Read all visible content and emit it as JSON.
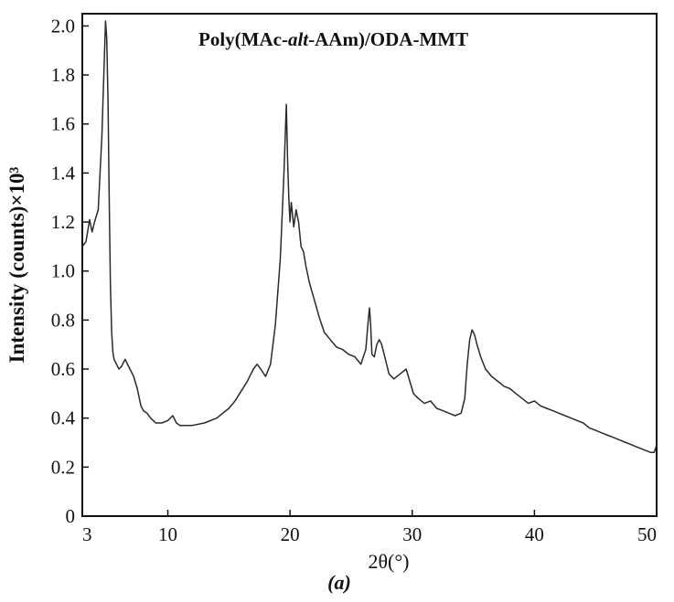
{
  "chart_data": {
    "type": "line",
    "title_parts": [
      "Poly(MAc-",
      "alt",
      "-AAm)/ODA-MMT"
    ],
    "ylabel": "Intensity (counts)×10³",
    "xlabel": "2θ(°)",
    "panel_label": "(a)",
    "xlim": [
      3,
      50
    ],
    "ylim": [
      0,
      2.05
    ],
    "x_ticks": [
      3,
      10,
      20,
      30,
      40,
      50
    ],
    "x_tick_labels": [
      "3",
      "10",
      "20",
      "30",
      "40",
      "50"
    ],
    "y_ticks": [
      0,
      0.2,
      0.4,
      0.6,
      0.8,
      1.0,
      1.2,
      1.4,
      1.6,
      1.8,
      2.0
    ],
    "y_tick_labels": [
      "0",
      "0.2",
      "0.4",
      "0.6",
      "0.8",
      "1.0",
      "1.2",
      "1.4",
      "1.6",
      "1.8",
      "2.0"
    ],
    "line_color": "#2a2a2a",
    "grid": false,
    "series": [
      {
        "x": [
          3.0,
          3.3,
          3.6,
          3.8,
          4.0,
          4.3,
          4.6,
          4.9,
          5.0,
          5.1,
          5.2,
          5.3,
          5.4,
          5.5,
          5.6,
          5.7,
          5.8,
          6.0,
          6.2,
          6.5,
          6.9,
          7.2,
          7.5,
          7.8,
          8.0,
          8.3,
          8.6,
          9.0,
          9.5,
          10.0,
          10.4,
          10.7,
          11.0,
          11.5,
          12.0,
          13.0,
          14.0,
          15.0,
          15.5,
          16.0,
          16.5,
          17.0,
          17.3,
          17.6,
          18.0,
          18.4,
          18.8,
          19.2,
          19.5,
          19.7,
          19.8,
          19.9,
          20.0,
          20.1,
          20.3,
          20.5,
          20.7,
          20.9,
          21.1,
          21.3,
          21.6,
          22.0,
          22.4,
          22.8,
          23.3,
          23.8,
          24.3,
          24.8,
          25.3,
          25.8,
          26.2,
          26.4,
          26.5,
          26.6,
          26.7,
          26.9,
          27.1,
          27.3,
          27.5,
          27.8,
          28.1,
          28.5,
          29.0,
          29.5,
          29.8,
          30.1,
          30.5,
          31.0,
          31.5,
          32.0,
          32.5,
          33.0,
          33.5,
          34.0,
          34.3,
          34.5,
          34.7,
          34.9,
          35.1,
          35.3,
          35.6,
          36.0,
          36.5,
          37.0,
          37.5,
          38.0,
          38.5,
          39.0,
          39.5,
          40.0,
          40.5,
          41.0,
          41.5,
          42.0,
          42.5,
          43.0,
          43.5,
          44.0,
          44.5,
          45.0,
          45.5,
          46.0,
          46.5,
          47.0,
          47.5,
          48.0,
          48.5,
          49.0,
          49.5,
          49.8,
          50.0
        ],
        "y": [
          1.1,
          1.12,
          1.21,
          1.16,
          1.2,
          1.25,
          1.55,
          2.02,
          1.95,
          1.7,
          1.3,
          0.95,
          0.75,
          0.67,
          0.64,
          0.63,
          0.62,
          0.6,
          0.61,
          0.64,
          0.6,
          0.57,
          0.52,
          0.45,
          0.43,
          0.42,
          0.4,
          0.38,
          0.38,
          0.39,
          0.41,
          0.38,
          0.37,
          0.37,
          0.37,
          0.38,
          0.4,
          0.44,
          0.47,
          0.51,
          0.55,
          0.6,
          0.62,
          0.6,
          0.57,
          0.62,
          0.78,
          1.05,
          1.4,
          1.68,
          1.45,
          1.3,
          1.2,
          1.28,
          1.18,
          1.25,
          1.2,
          1.1,
          1.08,
          1.02,
          0.95,
          0.88,
          0.81,
          0.75,
          0.72,
          0.69,
          0.68,
          0.66,
          0.65,
          0.62,
          0.68,
          0.8,
          0.85,
          0.78,
          0.66,
          0.65,
          0.7,
          0.72,
          0.7,
          0.64,
          0.58,
          0.56,
          0.58,
          0.6,
          0.55,
          0.5,
          0.48,
          0.46,
          0.47,
          0.44,
          0.43,
          0.42,
          0.41,
          0.42,
          0.48,
          0.62,
          0.72,
          0.76,
          0.74,
          0.7,
          0.65,
          0.6,
          0.57,
          0.55,
          0.53,
          0.52,
          0.5,
          0.48,
          0.46,
          0.47,
          0.45,
          0.44,
          0.43,
          0.42,
          0.41,
          0.4,
          0.39,
          0.38,
          0.36,
          0.35,
          0.34,
          0.33,
          0.32,
          0.31,
          0.3,
          0.29,
          0.28,
          0.27,
          0.26,
          0.26,
          0.29
        ]
      }
    ]
  }
}
